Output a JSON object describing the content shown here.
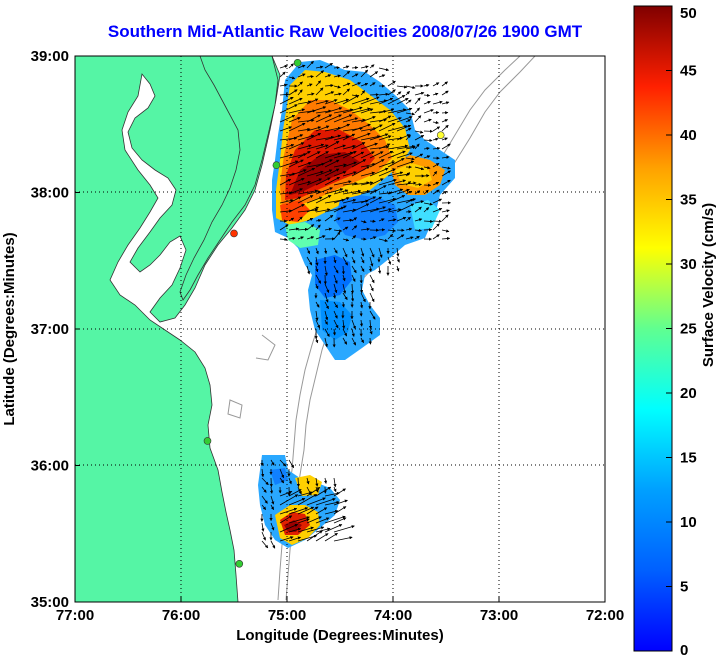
{
  "title": "Southern Mid-Atlantic Raw Velocities 2008/07/26 1900 GMT",
  "chart_data": {
    "type": "map",
    "xlabel": "Longitude (Degrees:Minutes)",
    "ylabel": "Latitude (Degrees:Minutes)",
    "xlim": [
      -77,
      -72
    ],
    "ylim": [
      35,
      39
    ],
    "xticks": [
      {
        "v": -77,
        "label": "77:00"
      },
      {
        "v": -76,
        "label": "76:00"
      },
      {
        "v": -75,
        "label": "75:00"
      },
      {
        "v": -74,
        "label": "74:00"
      },
      {
        "v": -73,
        "label": "73:00"
      },
      {
        "v": -72,
        "label": "72:00"
      }
    ],
    "yticks": [
      {
        "v": 35,
        "label": "35:00"
      },
      {
        "v": 36,
        "label": "36:00"
      },
      {
        "v": 37,
        "label": "37:00"
      },
      {
        "v": 38,
        "label": "38:00"
      },
      {
        "v": 39,
        "label": "39:00"
      }
    ],
    "grid": true,
    "colorbar": {
      "label": "Surface Velocity (cm/s)",
      "min": 0,
      "max": 50,
      "ticks": [
        "0",
        "5",
        "10",
        "15",
        "20",
        "25",
        "30",
        "35",
        "40",
        "45",
        "50"
      ],
      "colormap": "jet"
    },
    "land_color": "#55f5a5",
    "grid_color": "#000000",
    "bathymetry_color": "#999999",
    "stations": [
      {
        "lon": -74.9,
        "lat": 38.95,
        "color": "#33cc33"
      },
      {
        "lon": -75.1,
        "lat": 38.2,
        "color": "#33cc33"
      },
      {
        "lon": -75.5,
        "lat": 37.7,
        "color": "#ff3300"
      },
      {
        "lon": -73.55,
        "lat": 38.42,
        "color": "#ffff33"
      },
      {
        "lon": -75.75,
        "lat": 36.18,
        "color": "#33cc33"
      },
      {
        "lon": -75.45,
        "lat": 35.28,
        "color": "#33cc33"
      }
    ]
  }
}
